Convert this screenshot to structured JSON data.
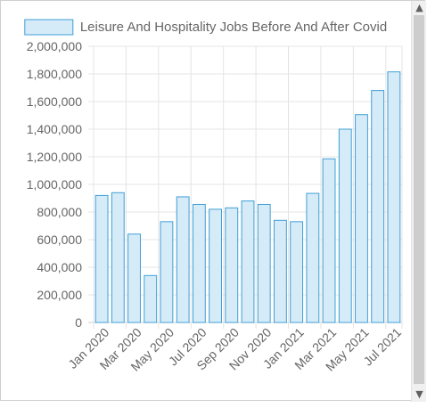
{
  "chart_data": {
    "type": "bar",
    "title": "",
    "legend": {
      "position": "top",
      "label": "Leisure And Hospitality Jobs Before And After Covid"
    },
    "categories": [
      "Jan 2020",
      "Feb 2020",
      "Mar 2020",
      "Apr 2020",
      "May 2020",
      "Jun 2020",
      "Jul 2020",
      "Aug 2020",
      "Sep 2020",
      "Oct 2020",
      "Nov 2020",
      "Dec 2020",
      "Jan 2021",
      "Feb 2021",
      "Mar 2021",
      "Apr 2021",
      "May 2021",
      "Jun 2021",
      "Jul 2021"
    ],
    "visible_tick_labels": [
      "Jan 2020",
      "Mar 2020",
      "May 2020",
      "Jul 2020",
      "Sep 2020",
      "Nov 2020",
      "Jan 2021",
      "Mar 2021",
      "May 2021",
      "Jul 2021"
    ],
    "series": [
      {
        "name": "Leisure And Hospitality Jobs Before And After Covid",
        "values": [
          920000,
          940000,
          640000,
          340000,
          730000,
          910000,
          855000,
          820000,
          830000,
          880000,
          855000,
          740000,
          730000,
          935000,
          1185000,
          1400000,
          1505000,
          1680000,
          1815000
        ]
      }
    ],
    "ylim": [
      0,
      2000000
    ],
    "y_ticks": [
      0,
      200000,
      400000,
      600000,
      800000,
      1000000,
      1200000,
      1400000,
      1600000,
      1800000,
      2000000
    ],
    "y_tick_labels": [
      "0",
      "200,000",
      "400,000",
      "600,000",
      "800,000",
      "1,000,000",
      "1,200,000",
      "1,400,000",
      "1,600,000",
      "1,800,000",
      "2,000,000"
    ],
    "grid": true,
    "colors": {
      "bar_fill": "#d6ebf8",
      "bar_border": "#3f9fd6",
      "grid": "#e4e4e4",
      "text": "#666666"
    }
  },
  "scrollbar": {
    "up_icon": "▲",
    "down_icon": "▼"
  }
}
